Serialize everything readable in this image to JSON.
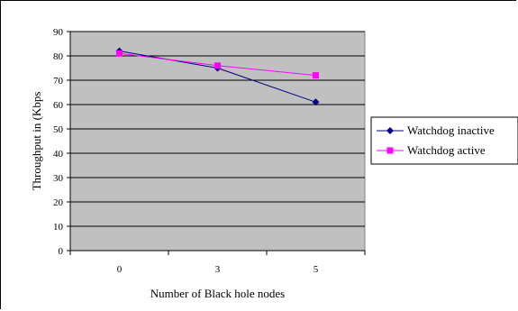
{
  "chart_data": {
    "type": "line",
    "title": "",
    "xlabel": "Number of Black hole nodes",
    "ylabel": "Throughput in  (Kbps",
    "categories": [
      "0",
      "3",
      "5"
    ],
    "ylim": [
      0,
      90
    ],
    "yticks": [
      0,
      10,
      20,
      30,
      40,
      50,
      60,
      70,
      80,
      90
    ],
    "grid": "horizontal",
    "legend_position": "right",
    "plot_background": "#c0c0c0",
    "series": [
      {
        "name": "Watchdog inactive",
        "values": [
          82,
          75,
          61
        ],
        "color": "#000080",
        "marker": "diamond"
      },
      {
        "name": "Watchdog active",
        "values": [
          81,
          76,
          72
        ],
        "color": "#ff00ff",
        "marker": "square"
      }
    ]
  }
}
